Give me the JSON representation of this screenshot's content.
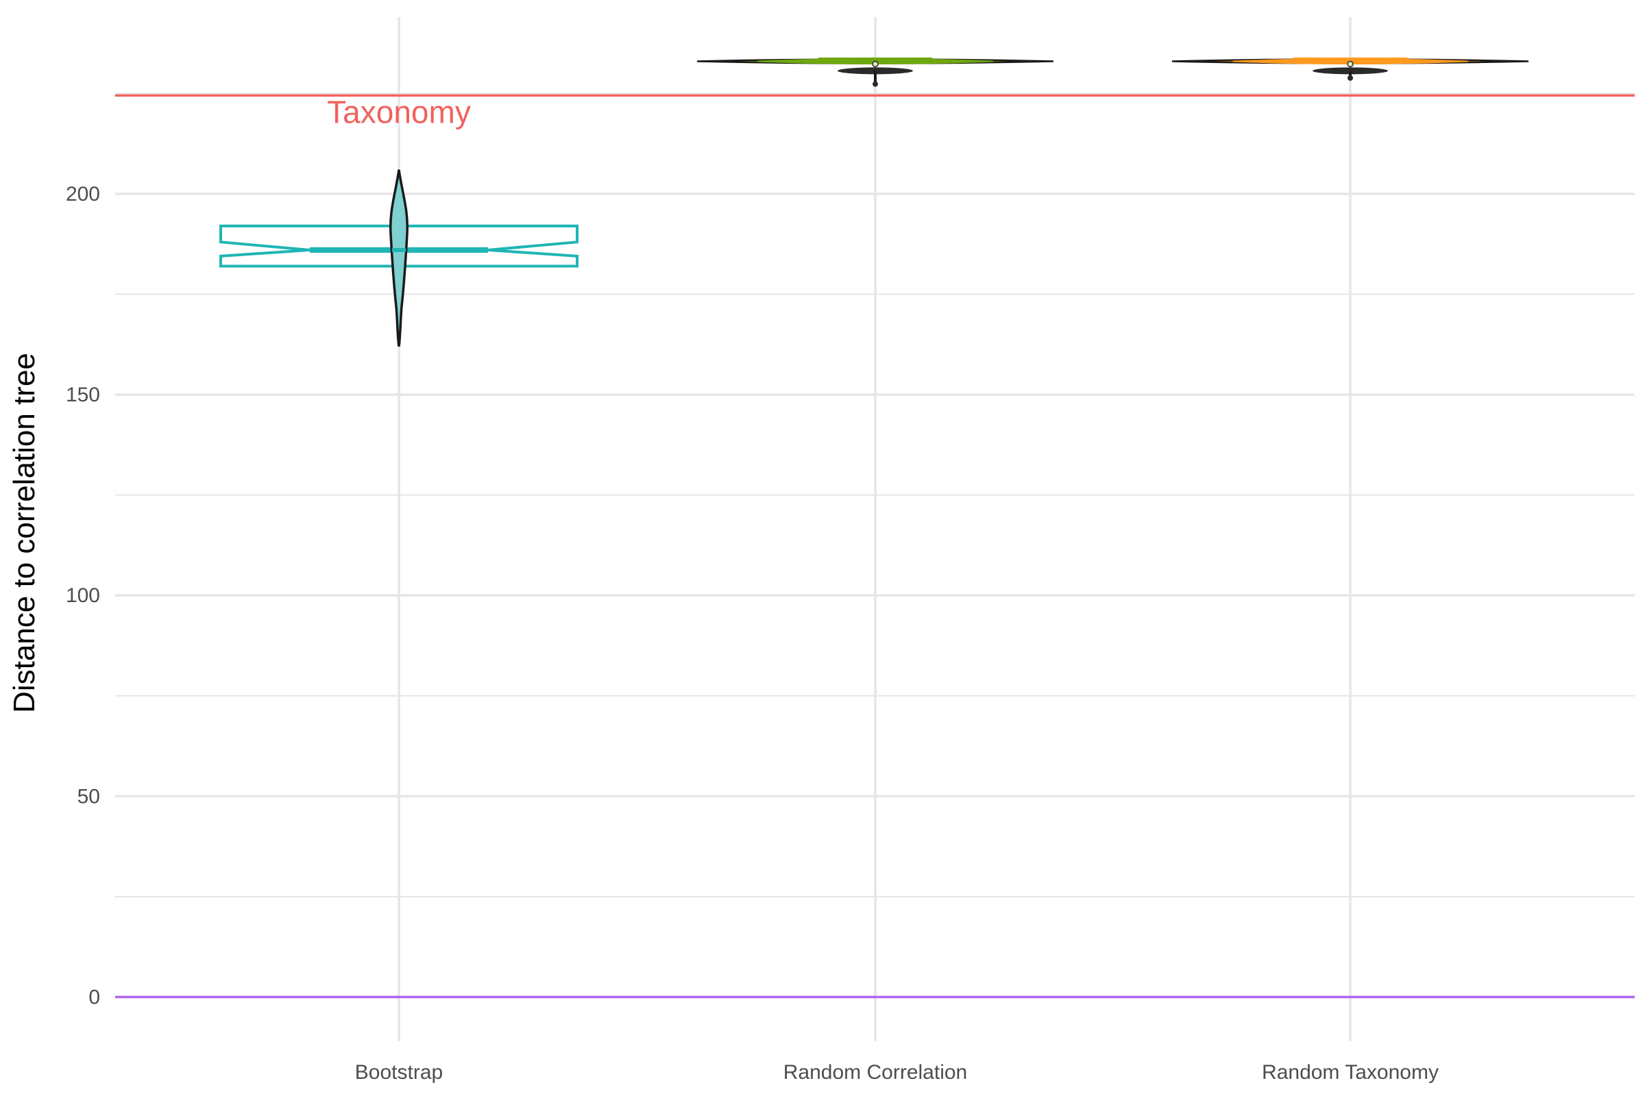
{
  "chart_data": {
    "type": "box",
    "categories": [
      "Bootstrap",
      "Random Correlation",
      "Random Taxonomy"
    ],
    "ylabel": "Distance to correlation tree",
    "xlabel": "",
    "ylim": [
      -11,
      244
    ],
    "y_ticks": [
      0,
      50,
      100,
      150,
      200
    ],
    "y_tick_labels": [
      "0",
      "50",
      "100",
      "150",
      "200"
    ],
    "grid": true,
    "legend": "none",
    "series": [
      {
        "category": "Bootstrap",
        "color": "#1fb5b5",
        "style": "notched-box-outline-with-violin",
        "box": {
          "q1": 182,
          "median": 186,
          "q3": 192,
          "notch_low": 184.5,
          "notch_high": 188
        },
        "violin": {
          "min": 162,
          "max": 206
        }
      },
      {
        "category": "Random Correlation",
        "color": "#6ea80e",
        "style": "filled-box-with-violin",
        "box": {
          "q1": 232,
          "median": 233,
          "q3": 233.5
        },
        "violin": {
          "min": 227,
          "max": 234
        }
      },
      {
        "category": "Random Taxonomy",
        "color": "#ff9a1f",
        "style": "filled-box-with-violin",
        "box": {
          "q1": 232,
          "median": 233,
          "q3": 233.5
        },
        "violin": {
          "min": 228.5,
          "max": 234
        }
      }
    ],
    "reference_lines": [
      {
        "y": 224.5,
        "color": "#f0625e",
        "label": "Taxonomy"
      },
      {
        "y": 0,
        "color": "#b066f0",
        "label": ""
      }
    ],
    "colors": {
      "grid": "#e6e6e6",
      "violin_outline": "#1a1a1a",
      "tick_text": "#4d4d4d"
    }
  }
}
